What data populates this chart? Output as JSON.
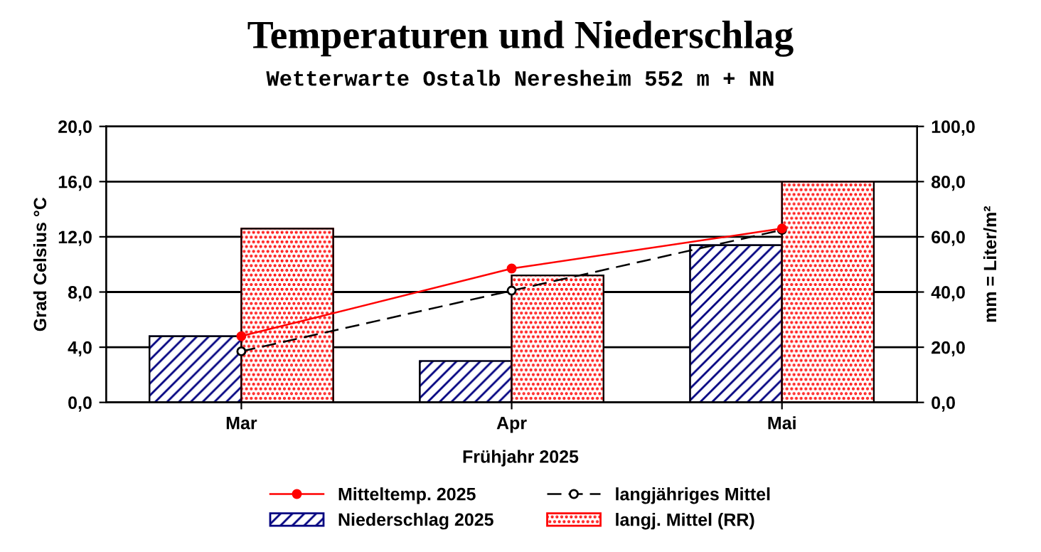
{
  "chart_data": {
    "type": "bar",
    "title": "Temperaturen und Niederschlag",
    "subtitle": "Wetterwarte Ostalb Neresheim 552 m + NN",
    "ylabel": "Grad Celsius °C",
    "y2label": "mm = Liter/m²",
    "categories": [
      "Mar",
      "Apr",
      "Mai"
    ],
    "series": [
      {
        "name": "Mitteltemp. 2025",
        "type": "line",
        "color": "#ff0000",
        "marker": "circle",
        "line_style": "solid",
        "values": [
          4.8,
          9.7,
          12.6
        ]
      },
      {
        "name": "langjähriges Mittel",
        "type": "line",
        "color": "#000000",
        "marker": "circle",
        "line_style": "dashed",
        "values": [
          3.7,
          8.1,
          12.5
        ]
      },
      {
        "name": "Niederschlag 2025",
        "axis": "y2",
        "color": "#000080",
        "values": [
          24,
          15,
          57
        ]
      },
      {
        "name": "langj. Mittel (RR)",
        "axis": "y2",
        "color": "#ff0000",
        "values": [
          63,
          46,
          80
        ]
      }
    ],
    "ylim": [
      0,
      20
    ],
    "yticks": [
      {
        "value": 0,
        "label": "0,0"
      },
      {
        "value": 4,
        "label": "4,0"
      },
      {
        "value": 8,
        "label": "8,0"
      },
      {
        "value": 12,
        "label": "12,0"
      },
      {
        "value": 16,
        "label": "16,0"
      },
      {
        "value": 20,
        "label": "20,0"
      }
    ],
    "y2lim": [
      0,
      100
    ],
    "y2ticks": [
      {
        "value": 0,
        "label": "0,0"
      },
      {
        "value": 20,
        "label": "20,0"
      },
      {
        "value": 40,
        "label": "40,0"
      },
      {
        "value": 60,
        "label": "60,0"
      },
      {
        "value": 80,
        "label": "80,0"
      },
      {
        "value": 100,
        "label": "100,0"
      }
    ],
    "grid": "y",
    "legend": "bottom",
    "annotations": [
      "Frühjahr 2025"
    ]
  }
}
